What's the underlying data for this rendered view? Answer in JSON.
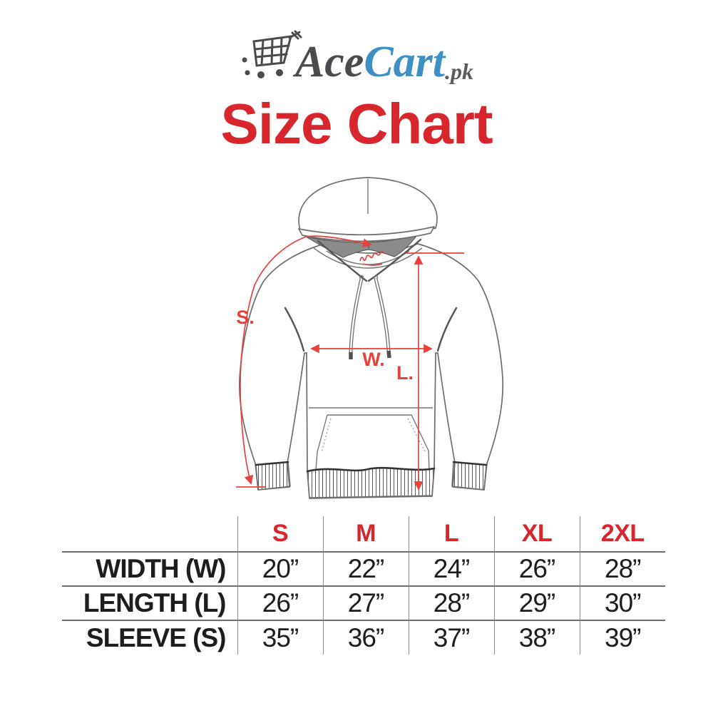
{
  "colors": {
    "accent_red": "#d7262c",
    "measure_line_red": "#e8403c",
    "logo_blue": "#3e8fc3",
    "logo_gray": "#4b4b4f",
    "hood_lining_gray": "#8b8b8b"
  },
  "logo": {
    "icon": "shopping-cart-icon",
    "brand_ace": "Ace",
    "brand_cart": "Cart",
    "brand_suffix": ".pk"
  },
  "title": {
    "text": "Size Chart"
  },
  "diagram": {
    "subject": "hoodie front-view line drawing with measurement arrows",
    "measure_labels": {
      "sleeve": "S.",
      "width": "W.",
      "length": "L."
    }
  },
  "chart_data": {
    "type": "table",
    "title": "Size Chart",
    "units": "inches",
    "columns": [
      "S",
      "M",
      "L",
      "XL",
      "2XL"
    ],
    "rows": [
      {
        "label": "WIDTH (W)",
        "values": [
          "20”",
          "22”",
          "24”",
          "26”",
          "28”"
        ]
      },
      {
        "label": "LENGTH (L)",
        "values": [
          "26”",
          "27”",
          "28”",
          "29”",
          "30”"
        ]
      },
      {
        "label": "SLEEVE (S)",
        "values": [
          "35”",
          "36”",
          "37”",
          "38”",
          "39”"
        ]
      }
    ]
  }
}
